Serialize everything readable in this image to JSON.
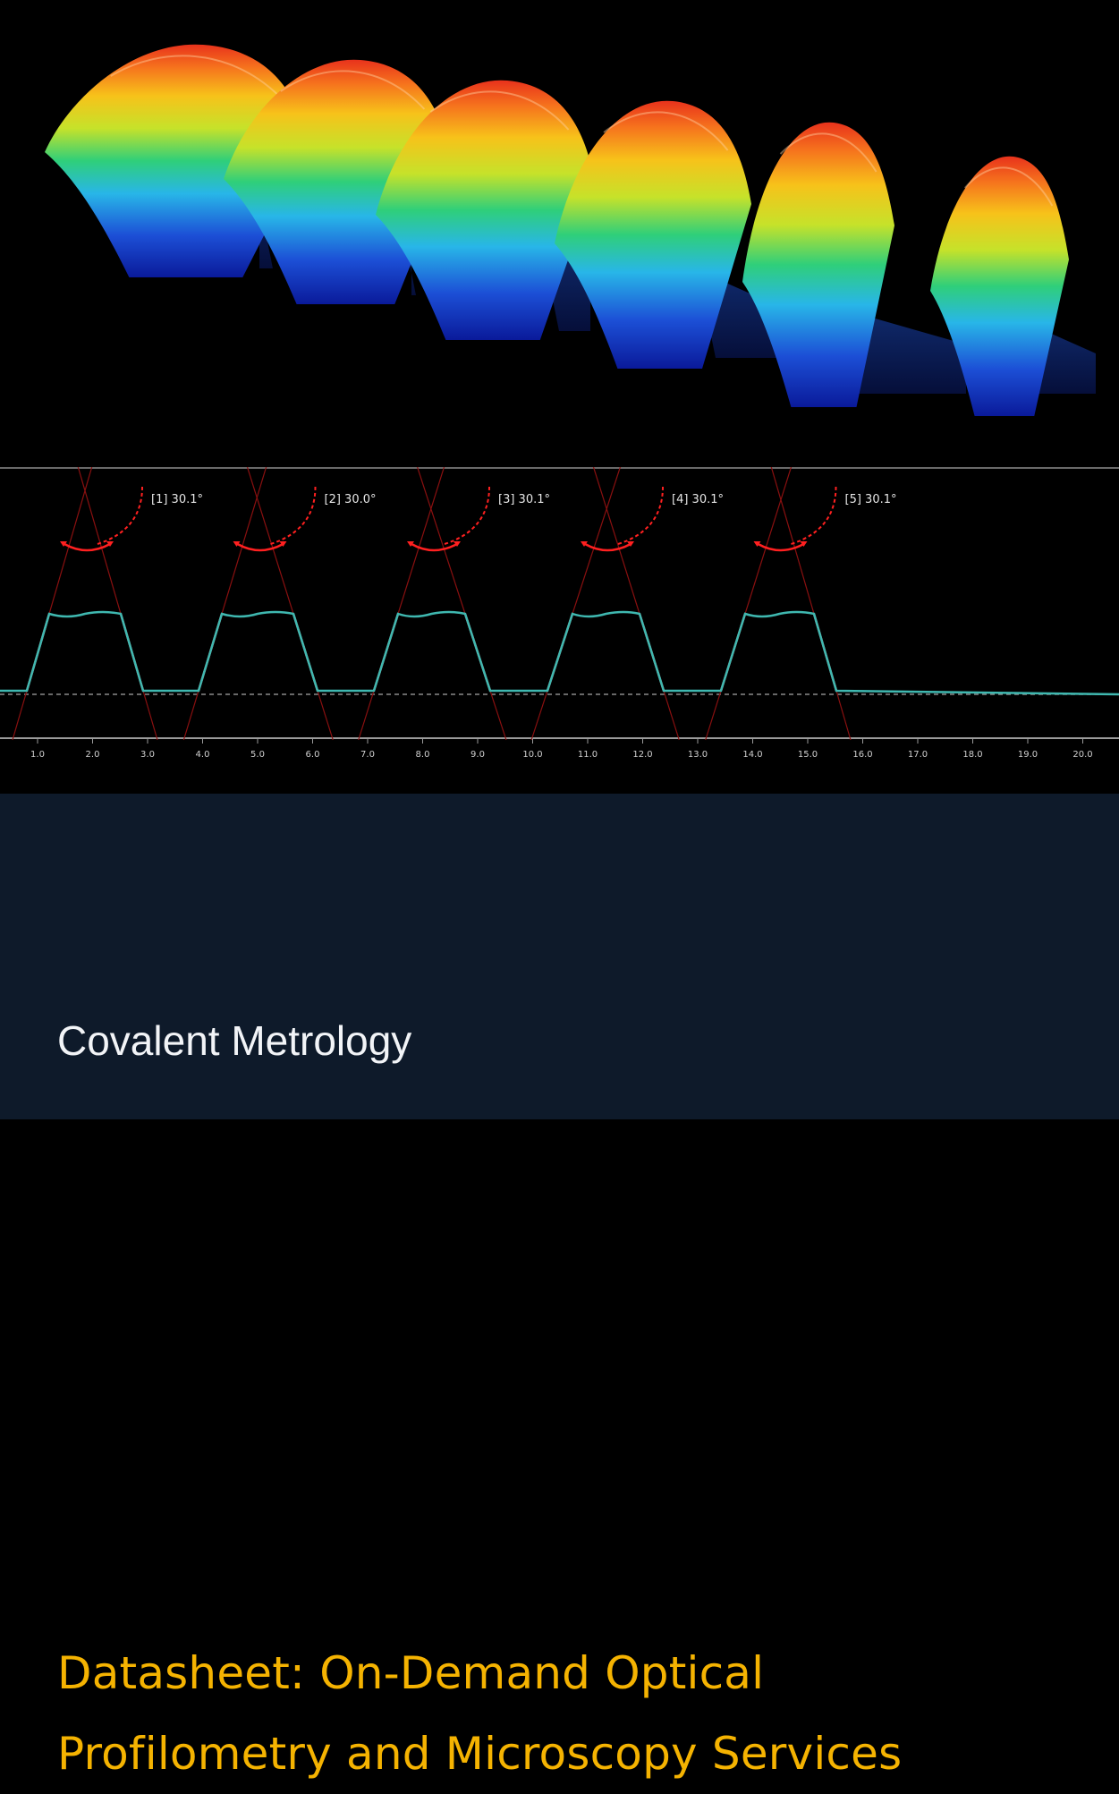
{
  "profile": {
    "angles": [
      "[1] 30.1°",
      "[2] 30.0°",
      "[3] 30.1°",
      "[4] 30.1°",
      "[5] 30.1°"
    ],
    "ticks": [
      "1.0",
      "2.0",
      "3.0",
      "4.0",
      "5.0",
      "6.0",
      "7.0",
      "8.0",
      "9.0",
      "10.0",
      "11.0",
      "12.0",
      "13.0",
      "14.0",
      "15.0",
      "16.0",
      "17.0",
      "18.0",
      "19.0",
      "20.0"
    ]
  },
  "banner": {
    "title_line1": "Datasheet: On-Demand Optical",
    "title_line2": "Profilometry and Microscopy Services",
    "company": "Covalent Metrology"
  },
  "colors": {
    "banner_bg": "#0e1a2a",
    "title": "#f5b301",
    "subtitle": "#f2f4f7",
    "angle_marker": "#ff2020",
    "profile_top": "#3fb8b0",
    "profile_flank": "#e77a82"
  }
}
